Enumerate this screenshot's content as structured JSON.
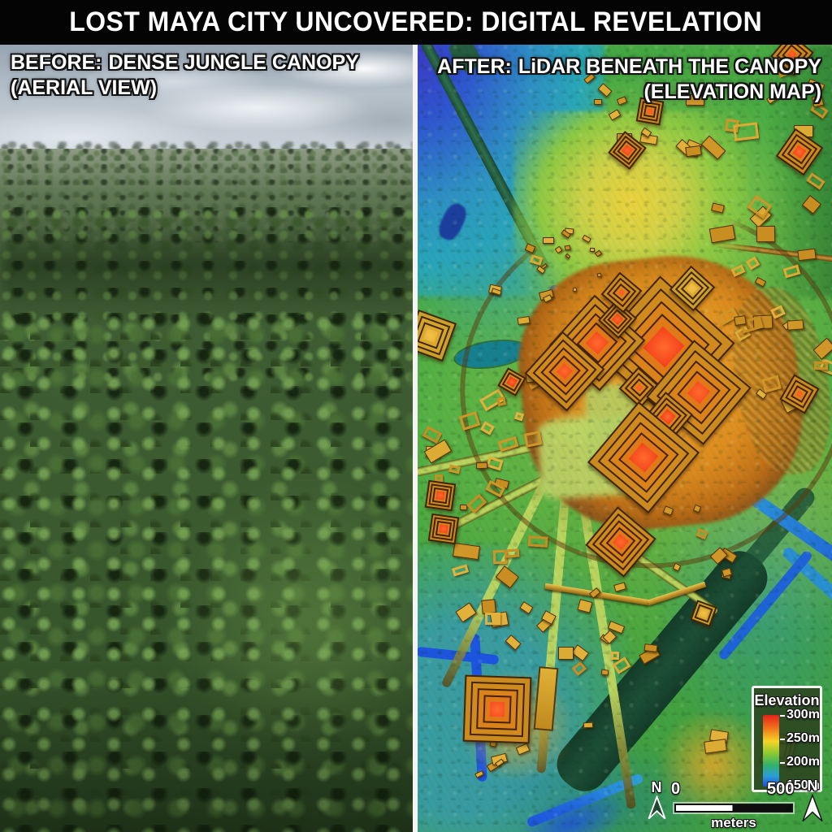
{
  "banner": {
    "title": "LOST MAYA CITY UNCOVERED: DIGITAL REVELATION"
  },
  "before_panel": {
    "tag": "BEFORE:",
    "title": "DENSE JUNGLE CANOPY",
    "subtitle": "(AERIAL VIEW)"
  },
  "after_panel": {
    "tag": "AFTER:",
    "title": "LiDAR BENEATH THE CANOPY",
    "subtitle": "(ELEVATION MAP)"
  },
  "legend": {
    "title": "Elevation",
    "ticks": [
      "300m",
      "250m",
      "200m",
      "150m"
    ]
  },
  "scale_bar": {
    "start": "0",
    "end": "500",
    "unit": "meters"
  },
  "compass": {
    "north": "N"
  },
  "colors": {
    "banner_bg": "#040404",
    "elevation_high_red": "#e32119",
    "elevation_mid_yellow": "#f4d626",
    "elevation_low_blue": "#1b50e0",
    "canopy_green": "#3c5a2f",
    "map_green": "#4aa943",
    "structure_gold": "#d9a52f",
    "water_blue": "#1d55e0",
    "reservoir_dark_green": "#1d4f36"
  }
}
